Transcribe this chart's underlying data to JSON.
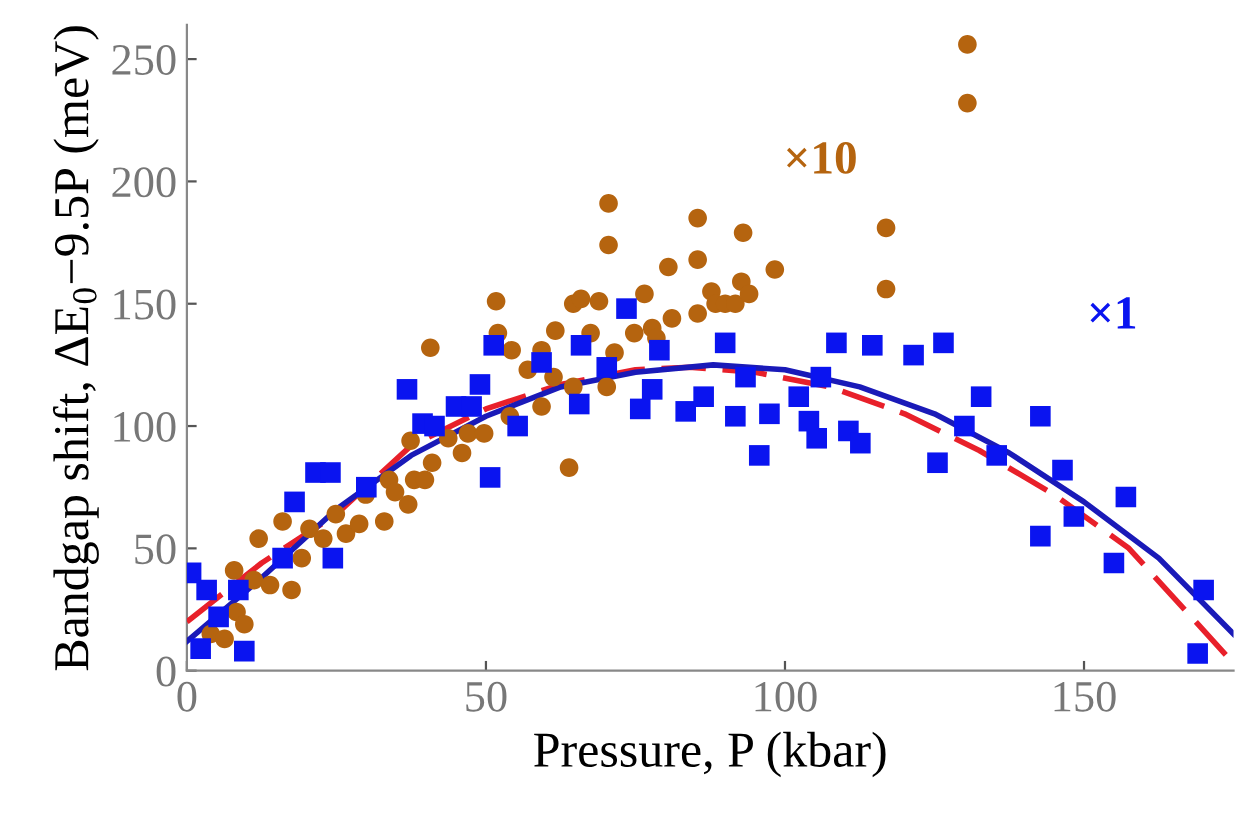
{
  "chart_data": {
    "type": "scatter",
    "xlabel": "Pressure, P (kbar)",
    "ylabel": "Bandgap shift, ΔE$_{0}$−9.5P (meV)",
    "xlim": [
      0,
      175
    ],
    "ylim": [
      0,
      264
    ],
    "xticks": [
      0,
      50,
      100,
      150
    ],
    "yticks": [
      0,
      50,
      100,
      150,
      200,
      250
    ],
    "grid": false,
    "legend": false,
    "series": [
      {
        "name": "×10",
        "color": "#b5640f",
        "marker": "circle",
        "x": [
          4,
          6.3,
          8.3,
          9.6,
          7.9,
          11.2,
          12,
          13.9,
          17.5,
          16,
          19.2,
          20.5,
          22.8,
          24.9,
          26.6,
          28.8,
          29.9,
          33,
          33.8,
          34.8,
          37,
          38,
          39.8,
          41,
          37.4,
          40.7,
          43.7,
          46,
          47,
          49.7,
          52,
          54,
          51.7,
          54.3,
          57,
          59.3,
          59.3,
          61.3,
          61.6,
          63.9,
          64.6,
          65.9,
          64.6,
          67.5,
          68.9,
          70.2,
          71.5,
          70.5,
          70.5,
          74.8,
          76.5,
          77.8,
          78.5,
          80.5,
          81.1,
          85.4,
          85.4,
          85.4,
          87.7,
          88.4,
          90,
          91.7,
          92.7,
          94,
          93,
          98.3,
          116.9,
          116.9,
          130.5,
          130.5
        ],
        "values": [
          15,
          13,
          24,
          19,
          41,
          37,
          54,
          35,
          33,
          61,
          46,
          58,
          54,
          64,
          56,
          60,
          72,
          61,
          78,
          73,
          68,
          78,
          78,
          85,
          94,
          132,
          95,
          89,
          97,
          97,
          138,
          104,
          151,
          131,
          123,
          131,
          108,
          120,
          139,
          83,
          150,
          152,
          116,
          138,
          151,
          116,
          130,
          191,
          174,
          138,
          154,
          140,
          136,
          165,
          144,
          185,
          168,
          146,
          155,
          150,
          150,
          150,
          159,
          154,
          179,
          164,
          181,
          156,
          256,
          232
        ]
      },
      {
        "name": "×1",
        "color": "#0a14f0",
        "marker": "square",
        "x": [
          0.7,
          2.3,
          3.3,
          5.3,
          8.6,
          9.6,
          16,
          18,
          21.5,
          24,
          24.4,
          30,
          36.8,
          39.4,
          41.4,
          45,
          47.6,
          49,
          50.7,
          51.3,
          55.3,
          59.3,
          65.6,
          65.9,
          70.2,
          73.5,
          75.8,
          77.8,
          79,
          83.4,
          86.4,
          90,
          91.7,
          93.4,
          95.7,
          97.4,
          102.3,
          104,
          105.3,
          106,
          108.6,
          110.6,
          112.6,
          114.6,
          121.5,
          125.5,
          126.5,
          130,
          132.8,
          135.4,
          142.7,
          142.7,
          146.4,
          148.3,
          155,
          157,
          169,
          170
        ],
        "values": [
          40,
          9,
          33,
          22,
          33,
          8,
          46,
          69,
          81,
          81,
          46,
          75,
          115,
          101,
          100,
          108,
          108,
          117,
          79,
          133,
          100,
          126,
          109,
          133,
          124,
          148,
          107,
          115,
          131,
          106,
          112,
          134,
          104,
          120,
          88,
          105,
          112,
          102,
          95,
          120,
          134,
          98,
          93,
          133,
          129,
          85,
          134,
          100,
          112,
          88,
          104,
          55,
          82,
          63,
          44,
          71,
          7,
          33
        ]
      },
      {
        "type": "line",
        "color": "#e8202a",
        "line_style": "dashed",
        "marker": "none",
        "x": [
          0,
          12.5,
          25,
          37.5,
          50,
          62.5,
          75,
          84,
          95,
          107.5,
          120,
          132.5,
          145,
          157.5,
          175
        ],
        "values": [
          20,
          44,
          64,
          92,
          107,
          117,
          123,
          124,
          122,
          116,
          105,
          90,
          72,
          50,
          3
        ]
      },
      {
        "type": "line",
        "color": "#1a1ab8",
        "line_style": "solid",
        "marker": "none",
        "x": [
          0,
          12.5,
          25,
          37.5,
          50,
          62.5,
          75,
          88,
          100,
          112.5,
          125,
          137.5,
          150,
          162.5,
          175
        ],
        "values": [
          12,
          38,
          66,
          88,
          104,
          116,
          122,
          125,
          123,
          116,
          105,
          89,
          69,
          46,
          15
        ]
      }
    ]
  }
}
